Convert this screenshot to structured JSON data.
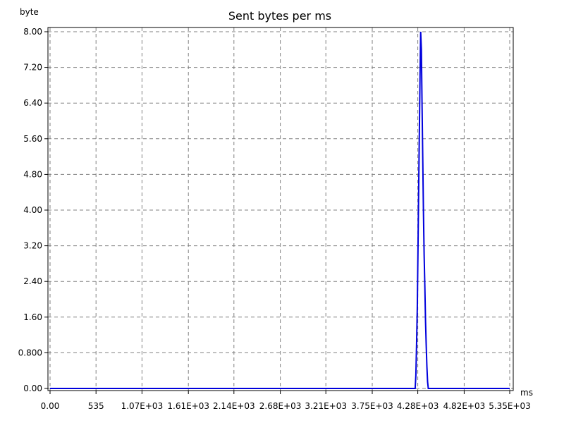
{
  "chart_data": {
    "type": "line",
    "title": "Sent bytes per ms",
    "xlabel": "ms",
    "ylabel": "byte",
    "xlim": [
      0,
      5350
    ],
    "ylim": [
      0,
      8
    ],
    "grid": true,
    "x_ticks": [
      {
        "value": 0,
        "label": "0.00"
      },
      {
        "value": 535,
        "label": "535"
      },
      {
        "value": 1070,
        "label": "1.07E+03"
      },
      {
        "value": 1610,
        "label": "1.61E+03"
      },
      {
        "value": 2140,
        "label": "2.14E+03"
      },
      {
        "value": 2680,
        "label": "2.68E+03"
      },
      {
        "value": 3210,
        "label": "3.21E+03"
      },
      {
        "value": 3750,
        "label": "3.75E+03"
      },
      {
        "value": 4280,
        "label": "4.28E+03"
      },
      {
        "value": 4820,
        "label": "4.82E+03"
      },
      {
        "value": 5350,
        "label": "5.35E+03"
      }
    ],
    "y_ticks": [
      {
        "value": 0,
        "label": "0.00"
      },
      {
        "value": 0.8,
        "label": "0.800"
      },
      {
        "value": 1.6,
        "label": "1.60"
      },
      {
        "value": 2.4,
        "label": "2.40"
      },
      {
        "value": 3.2,
        "label": "3.20"
      },
      {
        "value": 4.0,
        "label": "4.00"
      },
      {
        "value": 4.8,
        "label": "4.80"
      },
      {
        "value": 5.6,
        "label": "5.60"
      },
      {
        "value": 6.4,
        "label": "6.40"
      },
      {
        "value": 7.2,
        "label": "7.20"
      },
      {
        "value": 8.0,
        "label": "8.00"
      }
    ],
    "series": [
      {
        "color": "#0000dd",
        "x": [
          0,
          4250,
          4258,
          4266,
          4274,
          4282,
          4290,
          4298,
          4306,
          4314,
          4322,
          4330,
          4338,
          4346,
          4354,
          4362,
          4370,
          4378,
          4386,
          4394,
          4402,
          4410,
          4418,
          4426,
          4434,
          5350
        ],
        "y": [
          0,
          0,
          0.3,
          1.0,
          1.8,
          3.0,
          4.4,
          5.7,
          7.0,
          8.0,
          7.6,
          6.3,
          5.1,
          4.0,
          3.0,
          2.3,
          1.5,
          1.0,
          0.5,
          0.15,
          0,
          0,
          0,
          0,
          0,
          0
        ]
      }
    ]
  }
}
